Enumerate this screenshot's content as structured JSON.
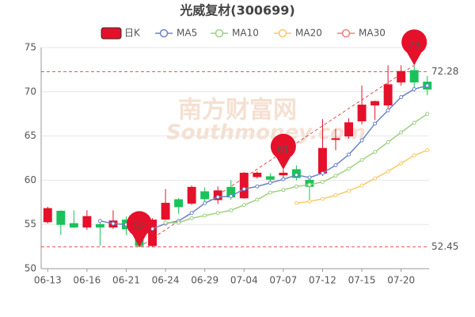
{
  "chart_data": {
    "type": "candlestick",
    "title": "光威复材(300699)",
    "watermark": [
      "南方财富网",
      "Southmoney.com"
    ],
    "categories": [
      "06-13",
      null,
      null,
      "06-16",
      null,
      null,
      "06-21",
      null,
      null,
      "06-24",
      null,
      null,
      "06-29",
      null,
      null,
      "07-04",
      null,
      null,
      "07-07",
      null,
      null,
      "07-12",
      null,
      null,
      "07-15",
      null,
      null,
      "07-20",
      null,
      null
    ],
    "candle": {
      "name": "日K",
      "up_color": "#e5102a",
      "down_color": "#1bc25a",
      "open": [
        55.3,
        56.5,
        55.1,
        54.7,
        55.0,
        54.7,
        55.5,
        54.4,
        52.6,
        55.6,
        57.8,
        57.4,
        58.7,
        57.8,
        59.2,
        58.0,
        60.4,
        60.4,
        60.6,
        61.2,
        60.0,
        60.8,
        64.6,
        65.0,
        66.7,
        68.5,
        68.5,
        71.1,
        72.4,
        71.1
      ],
      "high": [
        57.0,
        56.6,
        56.6,
        56.6,
        55.5,
        56.6,
        55.9,
        54.8,
        55.7,
        59.0,
        58.0,
        59.4,
        59.2,
        59.3,
        60.0,
        60.9,
        61.0,
        60.8,
        61.2,
        61.7,
        60.3,
        66.9,
        65.8,
        67.0,
        70.7,
        69.0,
        73.0,
        73.0,
        73.0,
        71.8
      ],
      "low": [
        55.1,
        53.8,
        54.6,
        54.4,
        52.6,
        54.5,
        53.8,
        52.45,
        52.5,
        55.5,
        56.2,
        57.2,
        57.5,
        57.3,
        57.8,
        57.9,
        60.2,
        59.6,
        60.3,
        60.0,
        57.7,
        60.5,
        63.4,
        64.7,
        66.3,
        66.8,
        68.0,
        70.7,
        70.0,
        69.6
      ],
      "close": [
        56.8,
        55.0,
        54.7,
        55.9,
        54.7,
        55.4,
        54.5,
        52.6,
        55.5,
        57.4,
        57.0,
        59.2,
        57.9,
        58.8,
        58.1,
        60.8,
        60.8,
        60.1,
        60.8,
        60.3,
        59.3,
        63.6,
        64.7,
        66.5,
        68.5,
        68.9,
        70.8,
        72.3,
        71.1,
        70.3
      ]
    },
    "series": [
      {
        "name": "MA5",
        "color": "#6b84c8",
        "values": [
          null,
          null,
          null,
          null,
          55.4,
          55.1,
          55.0,
          54.6,
          54.5,
          55.1,
          55.4,
          56.3,
          57.4,
          58.1,
          58.2,
          59.0,
          59.3,
          59.7,
          60.1,
          60.6,
          60.3,
          60.8,
          61.7,
          62.9,
          64.5,
          66.4,
          67.9,
          69.4,
          70.3,
          70.7
        ]
      },
      {
        "name": "MA10",
        "color": "#9ed07f",
        "values": [
          null,
          null,
          null,
          null,
          null,
          null,
          null,
          null,
          null,
          55.2,
          55.2,
          55.7,
          56.0,
          56.3,
          56.6,
          57.2,
          57.8,
          58.6,
          58.9,
          59.3,
          59.5,
          59.8,
          60.5,
          61.3,
          62.3,
          63.2,
          64.3,
          65.4,
          66.5,
          67.5
        ]
      },
      {
        "name": "MA20",
        "color": "#f6c96d",
        "values": [
          null,
          null,
          null,
          null,
          null,
          null,
          null,
          null,
          null,
          null,
          null,
          null,
          null,
          null,
          null,
          null,
          null,
          null,
          null,
          57.4,
          57.6,
          57.9,
          58.3,
          58.8,
          59.4,
          60.2,
          61.0,
          61.9,
          62.8,
          63.4
        ]
      },
      {
        "name": "MA30",
        "color": "#f07e7e",
        "values": [
          null,
          null,
          null,
          null,
          null,
          null,
          null,
          null,
          null,
          null,
          null,
          null,
          null,
          null,
          null,
          null,
          null,
          null,
          null,
          null,
          null,
          null,
          null,
          null,
          null,
          null,
          null,
          null,
          null,
          null
        ]
      }
    ],
    "reference_lines": [
      {
        "value": 72.28
      },
      {
        "value": 52.45
      }
    ],
    "annotations": [
      {
        "index": 7,
        "value": 52.45,
        "label": "52"
      },
      {
        "index": 18,
        "value": 61.2,
        "label": "61"
      },
      {
        "index": 28,
        "value": 73.0,
        "label": "73"
      }
    ],
    "ylim": [
      50,
      75
    ],
    "yticks": [
      50,
      55,
      60,
      65,
      70,
      75
    ],
    "grid": true
  }
}
